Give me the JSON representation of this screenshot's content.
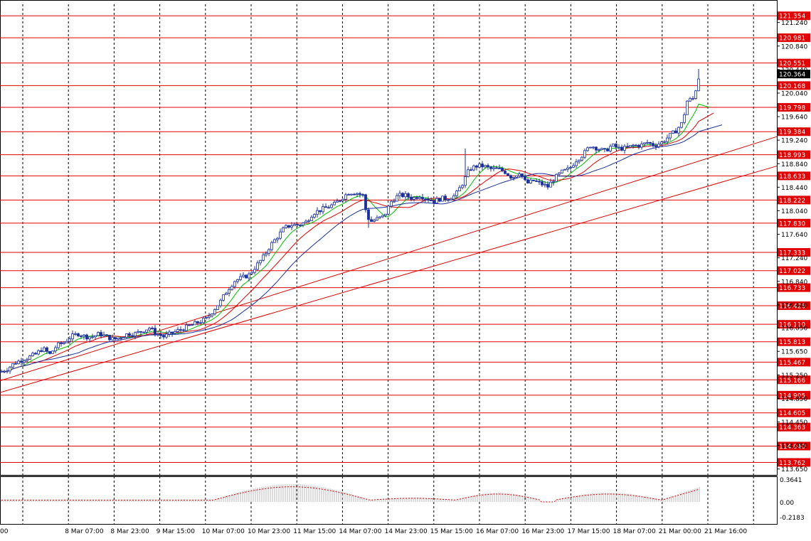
{
  "chart_data": {
    "type": "candlestick",
    "grid": true,
    "price_axis": {
      "range": [
        113.55,
        121.55
      ],
      "ticks": [
        "121.240",
        "120.840",
        "120.440",
        "120.040",
        "119.640",
        "119.240",
        "118.840",
        "118.440",
        "118.040",
        "117.640",
        "117.240",
        "116.840",
        "116.440",
        "116.050",
        "115.650",
        "115.250",
        "114.850",
        "114.450",
        "114.050",
        "113.650"
      ],
      "current_price": "120.364"
    },
    "horizontal_levels": [
      "121.354",
      "120.981",
      "120.551",
      "120.168",
      "119.798",
      "119.384",
      "118.993",
      "118.633",
      "118.222",
      "117.830",
      "117.333",
      "117.022",
      "116.733",
      "116.426",
      "116.110",
      "115.813",
      "115.467",
      "115.166",
      "114.905",
      "114.605",
      "114.363",
      "114.040",
      "113.762"
    ],
    "time_labels": [
      "00",
      "8 Mar 07:00",
      "8 Mar 23:00",
      "9 Mar 15:00",
      "10 Mar 07:00",
      "10 Mar 23:00",
      "11 Mar 15:00",
      "14 Mar 07:00",
      "14 Mar 23:00",
      "15 Mar 15:00",
      "16 Mar 07:00",
      "16 Mar 23:00",
      "17 Mar 15:00",
      "18 Mar 07:00",
      "21 Mar 00:00",
      "21 Mar 16:00"
    ],
    "price_path": [
      [
        0,
        115.3
      ],
      [
        10,
        115.35
      ],
      [
        20,
        115.45
      ],
      [
        30,
        115.5
      ],
      [
        40,
        115.55
      ],
      [
        50,
        115.6
      ],
      [
        60,
        115.7
      ],
      [
        70,
        115.6
      ],
      [
        80,
        115.75
      ],
      [
        90,
        115.8
      ],
      [
        100,
        115.9
      ],
      [
        110,
        115.95
      ],
      [
        120,
        115.9
      ],
      [
        130,
        115.9
      ],
      [
        140,
        115.95
      ],
      [
        150,
        115.9
      ],
      [
        160,
        115.85
      ],
      [
        170,
        115.9
      ],
      [
        180,
        115.95
      ],
      [
        190,
        115.95
      ],
      [
        200,
        116.0
      ],
      [
        210,
        116.05
      ],
      [
        220,
        115.95
      ],
      [
        230,
        115.9
      ],
      [
        240,
        115.95
      ],
      [
        250,
        116.0
      ],
      [
        260,
        116.05
      ],
      [
        270,
        116.1
      ],
      [
        280,
        116.15
      ],
      [
        290,
        116.2
      ],
      [
        300,
        116.35
      ],
      [
        310,
        116.5
      ],
      [
        320,
        116.7
      ],
      [
        330,
        116.85
      ],
      [
        340,
        116.9
      ],
      [
        350,
        116.95
      ],
      [
        360,
        117.1
      ],
      [
        370,
        117.25
      ],
      [
        380,
        117.45
      ],
      [
        390,
        117.6
      ],
      [
        400,
        117.75
      ],
      [
        410,
        117.8
      ],
      [
        420,
        117.8
      ],
      [
        430,
        117.85
      ],
      [
        440,
        118.0
      ],
      [
        450,
        118.05
      ],
      [
        460,
        118.1
      ],
      [
        470,
        118.15
      ],
      [
        480,
        118.25
      ],
      [
        490,
        118.35
      ],
      [
        500,
        118.35
      ],
      [
        510,
        118.3
      ],
      [
        515,
        118.0
      ],
      [
        520,
        117.85
      ],
      [
        530,
        117.9
      ],
      [
        540,
        117.95
      ],
      [
        550,
        118.2
      ],
      [
        560,
        118.3
      ],
      [
        570,
        118.3
      ],
      [
        580,
        118.25
      ],
      [
        590,
        118.3
      ],
      [
        600,
        118.25
      ],
      [
        610,
        118.2
      ],
      [
        620,
        118.25
      ],
      [
        630,
        118.25
      ],
      [
        640,
        118.3
      ],
      [
        650,
        118.5
      ],
      [
        660,
        118.75
      ],
      [
        670,
        118.8
      ],
      [
        680,
        118.8
      ],
      [
        690,
        118.75
      ],
      [
        700,
        118.75
      ],
      [
        710,
        118.7
      ],
      [
        720,
        118.6
      ],
      [
        730,
        118.7
      ],
      [
        740,
        118.5
      ],
      [
        750,
        118.55
      ],
      [
        760,
        118.5
      ],
      [
        770,
        118.45
      ],
      [
        780,
        118.6
      ],
      [
        790,
        118.7
      ],
      [
        800,
        118.75
      ],
      [
        810,
        118.9
      ],
      [
        820,
        119.0
      ],
      [
        830,
        119.15
      ],
      [
        840,
        119.1
      ],
      [
        850,
        119.05
      ],
      [
        860,
        119.15
      ],
      [
        870,
        119.1
      ],
      [
        880,
        119.1
      ],
      [
        890,
        119.15
      ],
      [
        900,
        119.15
      ],
      [
        910,
        119.2
      ],
      [
        920,
        119.15
      ],
      [
        930,
        119.2
      ],
      [
        940,
        119.3
      ],
      [
        950,
        119.4
      ],
      [
        960,
        119.55
      ],
      [
        965,
        119.9
      ],
      [
        975,
        119.95
      ],
      [
        983,
        120.35
      ]
    ],
    "indicator": {
      "ticks": [
        "0.3641",
        "0.00",
        "-0.2183"
      ]
    }
  }
}
